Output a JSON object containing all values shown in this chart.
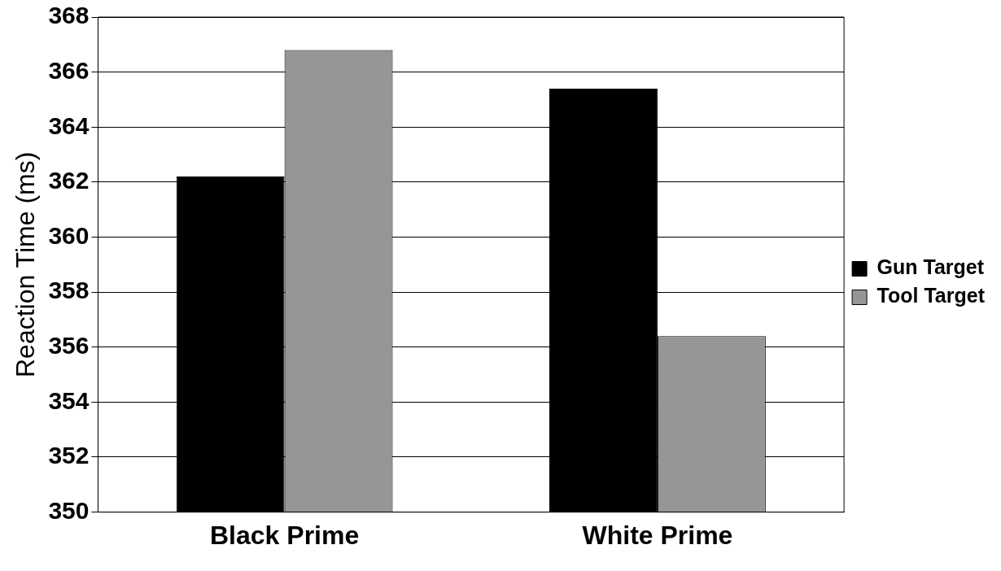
{
  "chart_data": {
    "type": "bar",
    "ylabel": "Reaction Time (ms)",
    "categories": [
      "Black Prime",
      "White Prime"
    ],
    "series": [
      {
        "name": "Gun Target",
        "color": "#000000",
        "values": [
          362.2,
          365.4
        ]
      },
      {
        "name": "Tool Target",
        "color": "#969696",
        "values": [
          366.8,
          356.4
        ]
      }
    ],
    "ylim": [
      350,
      368
    ],
    "yticks": [
      350,
      352,
      354,
      356,
      358,
      360,
      362,
      364,
      366,
      368
    ],
    "grid": "y",
    "legend": "right"
  }
}
